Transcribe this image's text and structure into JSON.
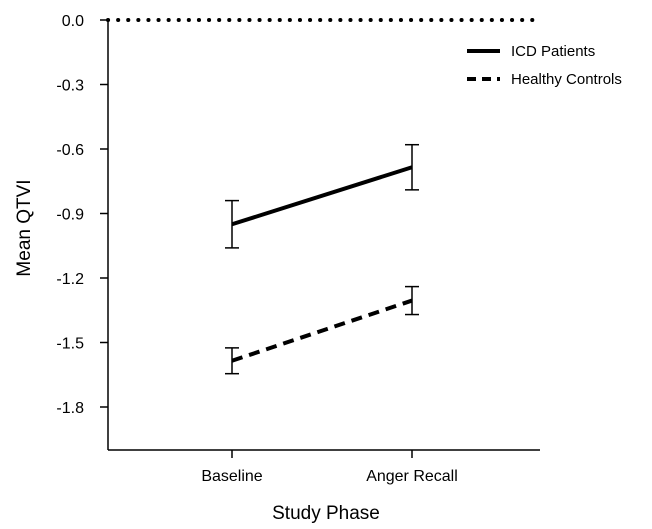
{
  "chart_data": {
    "type": "line",
    "title": "",
    "xlabel": "Study Phase",
    "ylabel": "Mean QTVI",
    "categories": [
      "Baseline",
      "Anger Recall"
    ],
    "ylim": [
      -2.0,
      0.0
    ],
    "yticks": [
      0.0,
      -0.3,
      -0.6,
      -0.9,
      -1.2,
      -1.5,
      -1.8
    ],
    "ytick_labels": [
      "0.0",
      "-0.3",
      "-0.6",
      "-0.9",
      "-1.2",
      "-1.5",
      "-1.8"
    ],
    "reference_line": {
      "y": 0.0,
      "style": "dotted"
    },
    "grid": false,
    "legend_position": "top-right",
    "series": [
      {
        "name": "ICD Patients",
        "style": "solid",
        "values": [
          -0.95,
          -0.685
        ],
        "error_low": [
          -1.06,
          -0.79
        ],
        "error_high": [
          -0.84,
          -0.58
        ]
      },
      {
        "name": "Healthy Controls",
        "style": "dashed",
        "values": [
          -1.585,
          -1.305
        ],
        "error_low": [
          -1.645,
          -1.37
        ],
        "error_high": [
          -1.525,
          -1.24
        ]
      }
    ]
  }
}
